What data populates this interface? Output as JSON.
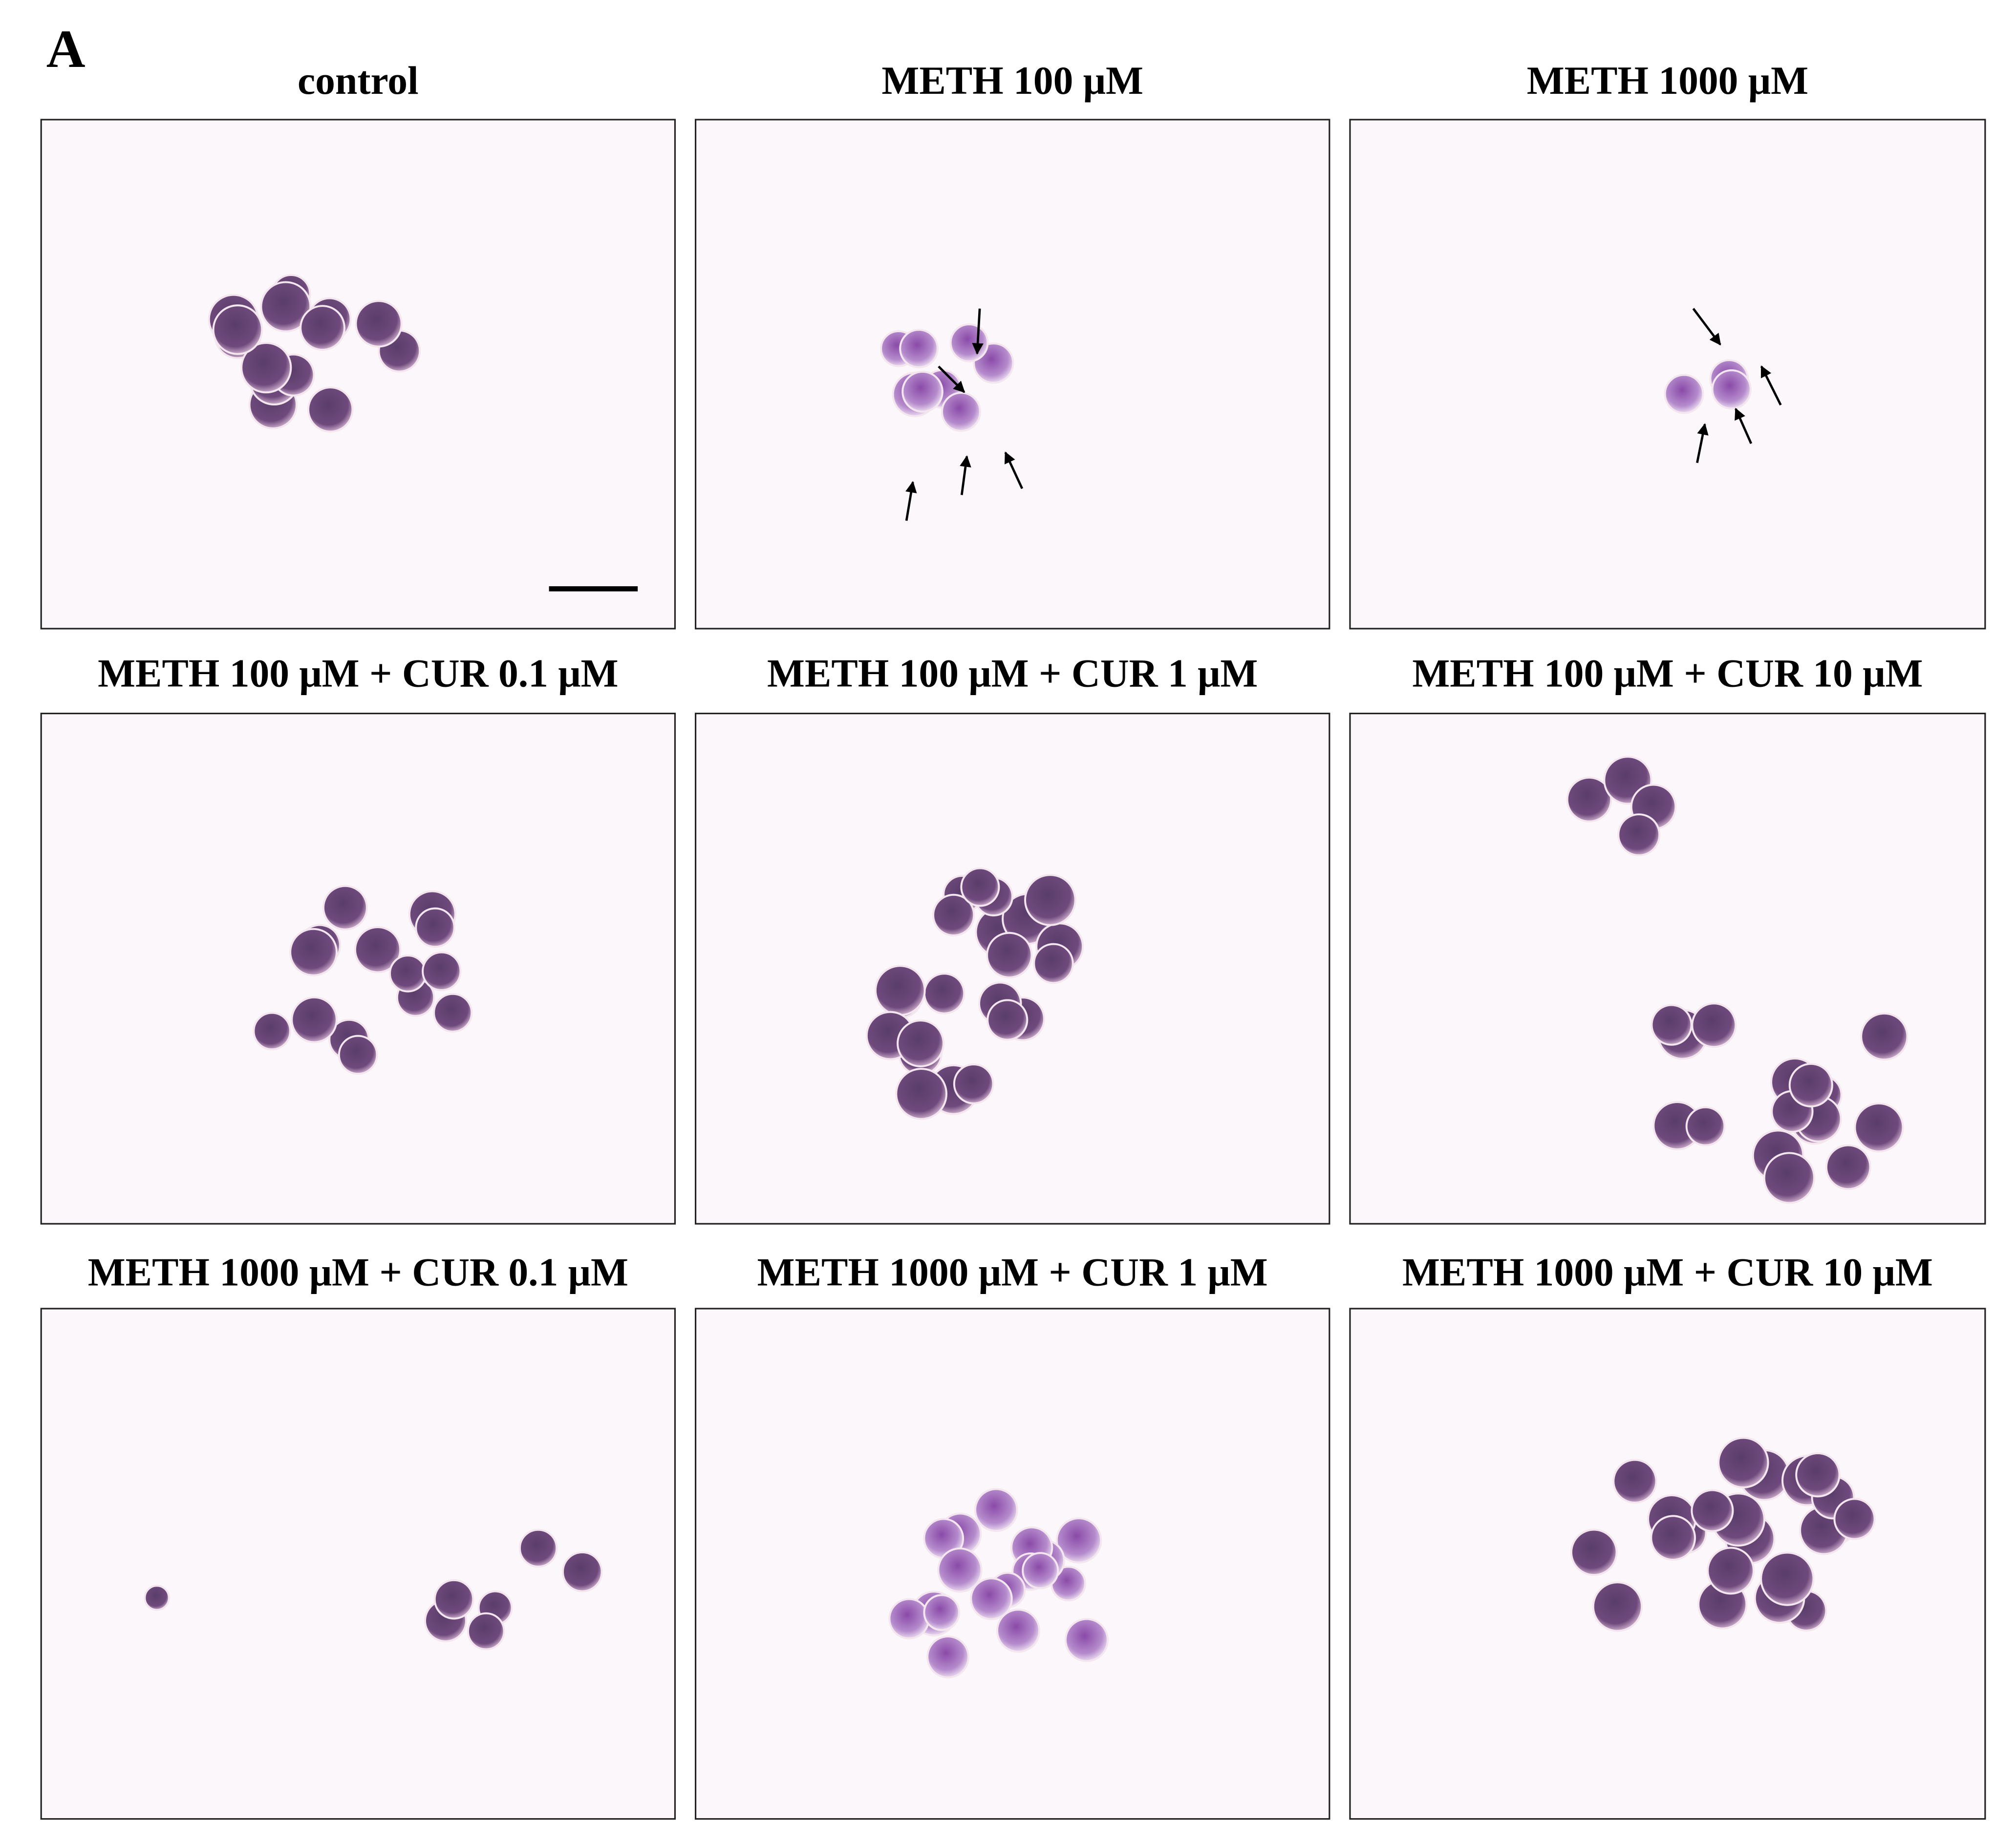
{
  "panel_label": "A",
  "panels": [
    {
      "title": "control"
    },
    {
      "title": "METH 100 μM"
    },
    {
      "title": "METH 1000 μM"
    },
    {
      "title": "METH 100 μM + CUR 0.1 μM"
    },
    {
      "title": "METH 100 μM + CUR 1 μM"
    },
    {
      "title": "METH 100 μM + CUR 10 μM"
    },
    {
      "title": "METH 1000 μM + CUR 0.1 μM"
    },
    {
      "title": "METH 1000 μM + CUR 1 μM"
    },
    {
      "title": "METH 1000 μM + CUR 10 μM"
    }
  ]
}
